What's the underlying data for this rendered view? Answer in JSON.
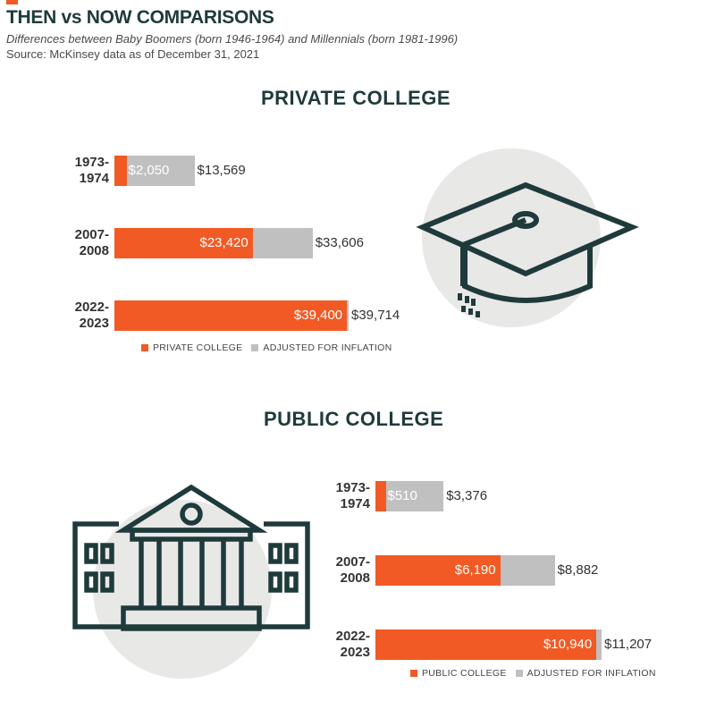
{
  "header": {
    "title": "THEN vs NOW COMPARISONS",
    "subtitle": "Differences between Baby Boomers (born 1946-1964) and Millennials (born 1981-1996)",
    "source": "Source: McKinsey data as of December 31, 2021"
  },
  "colors": {
    "main": "#f15a24",
    "adjusted": "#c0c0c0",
    "dark": "#1f3a3b",
    "circle": "#e8e8e7"
  },
  "icons": {
    "private": "graduation-cap-icon",
    "public": "college-building-icon"
  },
  "chart_data": [
    {
      "type": "bar",
      "orientation": "horizontal",
      "title": "PRIVATE COLLEGE",
      "categories": [
        [
          "1973-",
          "1974"
        ],
        [
          "2007-",
          "2008"
        ],
        [
          "2022-",
          "2023"
        ]
      ],
      "series": [
        {
          "name": "PRIVATE COLLEGE",
          "values": [
            2050,
            23420,
            39400
          ],
          "labels": [
            "$2,050",
            "$23,420",
            "$39,400"
          ]
        },
        {
          "name": "ADJUSTED FOR INFLATION",
          "values": [
            13569,
            33606,
            39714
          ],
          "labels": [
            "$13,569",
            "$33,606",
            "$39,714"
          ]
        }
      ],
      "legend": "bottom",
      "grid": false
    },
    {
      "type": "bar",
      "orientation": "horizontal",
      "title": "PUBLIC COLLEGE",
      "categories": [
        [
          "1973-",
          "1974"
        ],
        [
          "2007-",
          "2008"
        ],
        [
          "2022-",
          "2023"
        ]
      ],
      "series": [
        {
          "name": "PUBLIC COLLEGE",
          "values": [
            510,
            6190,
            10940
          ],
          "labels": [
            "$510",
            "$6,190",
            "$10,940"
          ]
        },
        {
          "name": "ADJUSTED FOR INFLATION",
          "values": [
            3376,
            8882,
            11207
          ],
          "labels": [
            "$3,376",
            "$8,882",
            "$11,207"
          ]
        }
      ],
      "legend": "bottom",
      "grid": false
    }
  ]
}
